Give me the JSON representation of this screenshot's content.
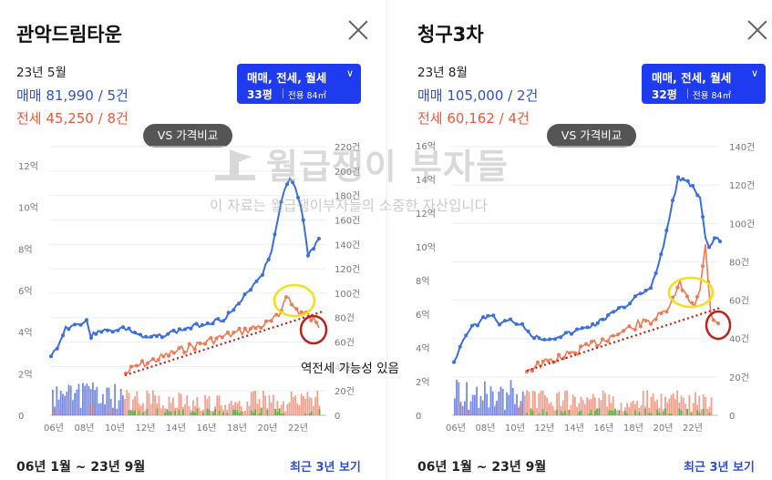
{
  "left": {
    "title": "관악드림타운",
    "date": "23년 5월",
    "sale": "매매 81,990 / 5건",
    "jeonse": "전세 45,250 / 8건",
    "filter_type": "매매, 전세, 월세",
    "filter_size": "33평",
    "filter_area": "전용 84㎡",
    "vs_label": "VS 가격비교",
    "y_left": [
      "12억",
      "10억",
      "8억",
      "6억",
      "4억",
      "2억",
      "0"
    ],
    "y_right": [
      "220건",
      "200건",
      "180건",
      "160건",
      "140건",
      "120건",
      "100건",
      "80건",
      "60건",
      "40건",
      "20건",
      "0"
    ],
    "x_ticks": [
      "06년",
      "08년",
      "10년",
      "12년",
      "14년",
      "16년",
      "18년",
      "20년",
      "22년"
    ],
    "range": "06년 1월 ~ 23년 9월",
    "recent": "최근 3년 보기"
  },
  "right": {
    "title": "청구3차",
    "date": "23년 8월",
    "sale": "매매 105,000 / 2건",
    "jeonse": "전세 60,162 / 4건",
    "filter_type": "매매, 전세, 월세",
    "filter_size": "32평",
    "filter_area": "전용 84㎡",
    "vs_label": "VS 가격비교",
    "y_left": [
      "16억",
      "14억",
      "12억",
      "10억",
      "8억",
      "6억",
      "4억",
      "2억",
      "0"
    ],
    "y_right": [
      "140건",
      "120건",
      "100건",
      "80건",
      "60건",
      "40건",
      "20건",
      "0"
    ],
    "x_ticks": [
      "06년",
      "08년",
      "10년",
      "12년",
      "14년",
      "16년",
      "18년",
      "20년",
      "22년"
    ],
    "range": "06년 1월 ~ 23년 9월",
    "recent": "최근 3년 보기"
  },
  "watermark": {
    "brand": "월급쟁이 부자들",
    "notice": "이 자료는 월급쟁이부자들의 소중한 자산입니다"
  },
  "annotation": "역전세 가능성 있음",
  "colors": {
    "sale": "#3a6fe0",
    "jeonse": "#f07a55",
    "volume_sale": "#4a63e0",
    "volume_jeonse": "#f08a72",
    "trend": "#c0201a",
    "highlight_yellow": "#f3e01a",
    "highlight_red": "#c0201a",
    "filter_bg": "#1f3bf0"
  }
}
